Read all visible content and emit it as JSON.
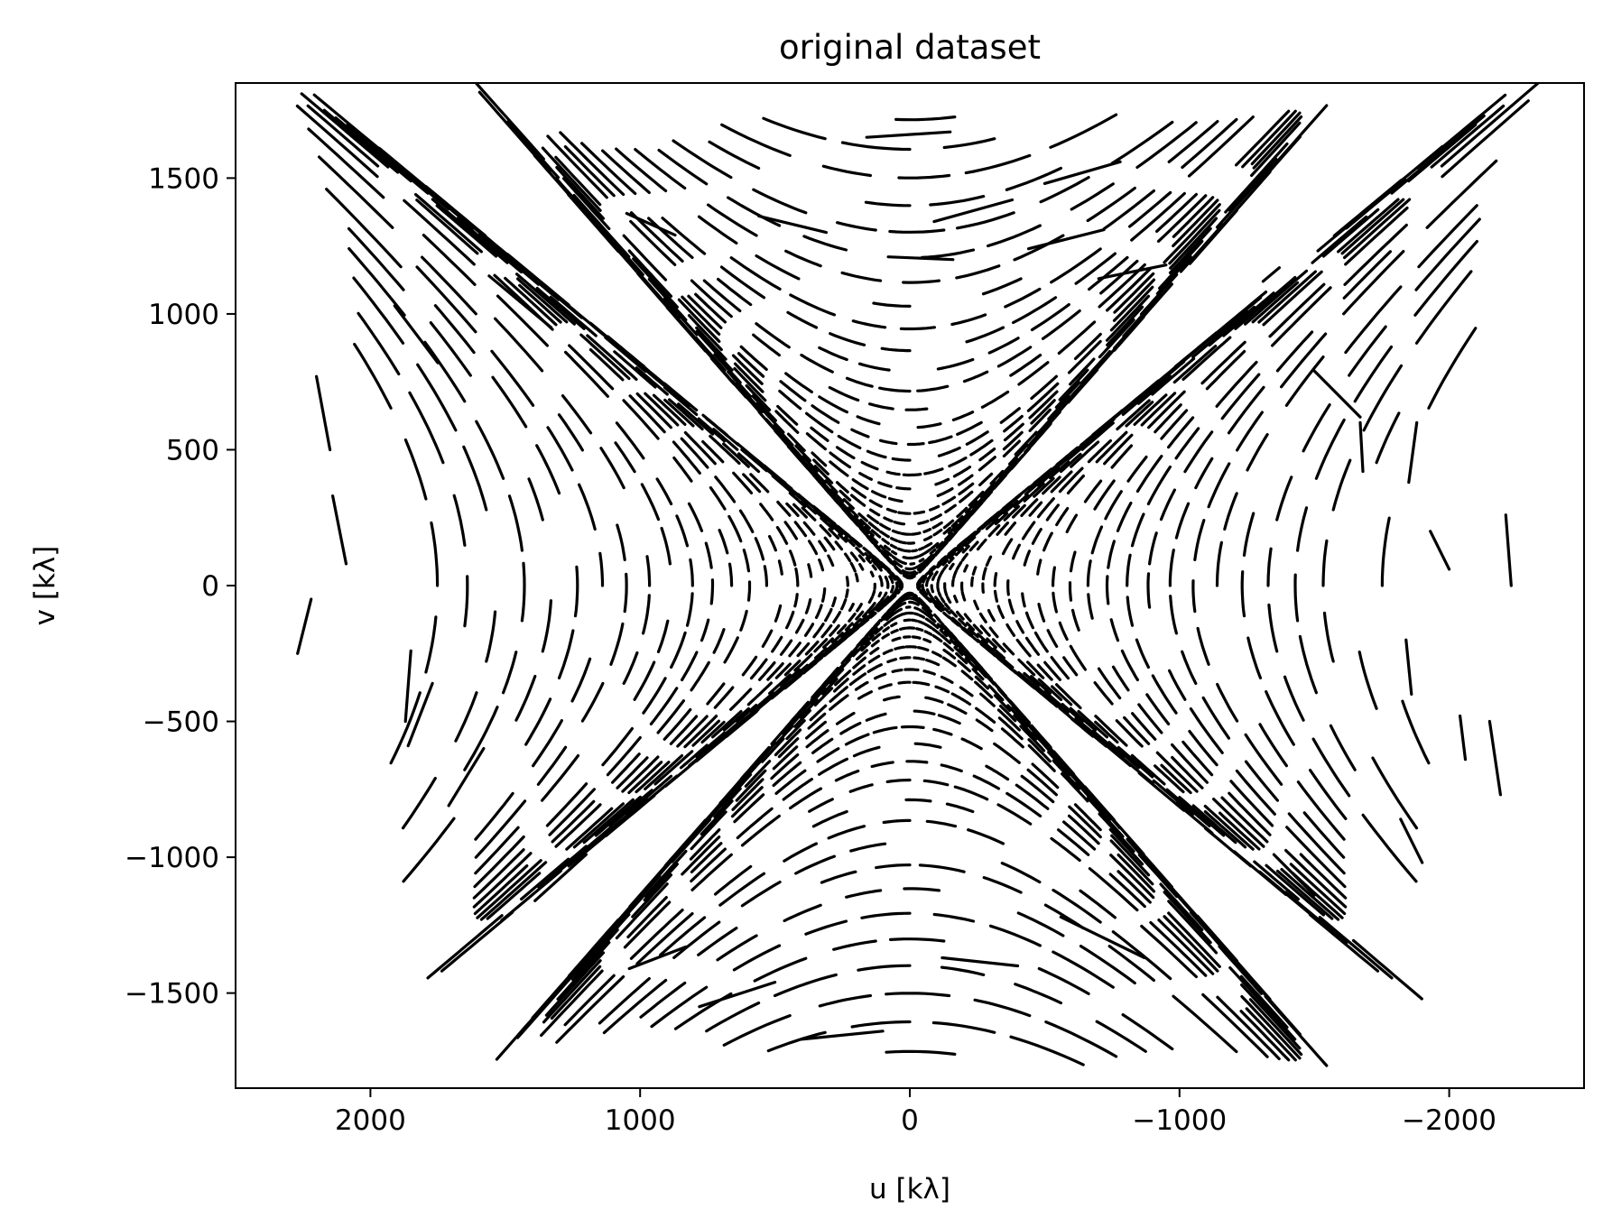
{
  "chart_data": {
    "type": "scatter",
    "title": "original dataset",
    "xlabel": "u [kλ]",
    "ylabel": "v [kλ]",
    "xlim": [
      2500,
      -2500
    ],
    "ylim": [
      -1850,
      1850
    ],
    "x_reversed": true,
    "xticks": [
      2000,
      1000,
      0,
      -1000,
      -2000
    ],
    "xtick_labels": [
      "2000",
      "1000",
      "0",
      "−1000",
      "−2000"
    ],
    "yticks": [
      1500,
      1000,
      500,
      0,
      -500,
      -1000,
      -1500
    ],
    "ytick_labels": [
      "1500",
      "1000",
      "500",
      "0",
      "−500",
      "−1000",
      "−1500"
    ],
    "grid": false,
    "legend": "none",
    "marker_color": "#000000",
    "track_segments": [
      {
        "u": [
          160,
          -150
        ],
        "v": [
          1650,
          1670
        ]
      },
      {
        "u": [
          -500,
          -780
        ],
        "v": [
          1480,
          1560
        ]
      },
      {
        "u": [
          -90,
          -380
        ],
        "v": [
          1340,
          1420
        ]
      },
      {
        "u": [
          80,
          -160
        ],
        "v": [
          1210,
          1200
        ]
      },
      {
        "u": [
          1050,
          870
        ],
        "v": [
          1370,
          1290
        ]
      },
      {
        "u": [
          560,
          310
        ],
        "v": [
          1360,
          1300
        ]
      },
      {
        "u": [
          -440,
          -720
        ],
        "v": [
          1240,
          1310
        ]
      },
      {
        "u": [
          -700,
          -950
        ],
        "v": [
          1130,
          1180
        ]
      },
      {
        "u": [
          1560,
          1330
        ],
        "v": [
          1140,
          950
        ]
      },
      {
        "u": [
          1910,
          1750
        ],
        "v": [
          1030,
          820
        ]
      },
      {
        "u": [
          2200,
          2150
        ],
        "v": [
          770,
          500
        ]
      },
      {
        "u": [
          -1310,
          -1370
        ],
        "v": [
          1120,
          1170
        ]
      },
      {
        "u": [
          -1500,
          -1670
        ],
        "v": [
          790,
          620
        ]
      },
      {
        "u": [
          -1670,
          -1680
        ],
        "v": [
          600,
          420
        ]
      },
      {
        "u": [
          -1880,
          -1850
        ],
        "v": [
          600,
          380
        ]
      },
      {
        "u": [
          -2210,
          -2230
        ],
        "v": [
          260,
          0
        ]
      },
      {
        "u": [
          2270,
          2220
        ],
        "v": [
          -250,
          -50
        ]
      },
      {
        "u": [
          2140,
          2090
        ],
        "v": [
          330,
          80
        ]
      },
      {
        "u": [
          1870,
          1850
        ],
        "v": [
          -500,
          -240
        ]
      },
      {
        "u": [
          1860,
          1770
        ],
        "v": [
          -590,
          -360
        ]
      },
      {
        "u": [
          1710,
          1580
        ],
        "v": [
          -810,
          -600
        ]
      },
      {
        "u": [
          1390,
          1200
        ],
        "v": [
          -1160,
          -990
        ]
      },
      {
        "u": [
          1040,
          830
        ],
        "v": [
          -1410,
          -1330
        ]
      },
      {
        "u": [
          780,
          500
        ],
        "v": [
          -1550,
          -1460
        ]
      },
      {
        "u": [
          400,
          100
        ],
        "v": [
          -1670,
          -1640
        ]
      },
      {
        "u": [
          -120,
          -400
        ],
        "v": [
          -1370,
          -1400
        ]
      },
      {
        "u": [
          -560,
          -870
        ],
        "v": [
          -1220,
          -1370
        ]
      },
      {
        "u": [
          -1500,
          -1350
        ],
        "v": [
          -1140,
          -990
        ]
      },
      {
        "u": [
          -1900,
          -1820
        ],
        "v": [
          -1020,
          -860
        ]
      },
      {
        "u": [
          -2190,
          -2150
        ],
        "v": [
          -770,
          -500
        ]
      },
      {
        "u": [
          -2060,
          -2040
        ],
        "v": [
          -640,
          -480
        ]
      },
      {
        "u": [
          -1860,
          -1840
        ],
        "v": [
          -400,
          -200
        ]
      },
      {
        "u": [
          -2000,
          -1930
        ],
        "v": [
          60,
          200
        ]
      }
    ]
  }
}
